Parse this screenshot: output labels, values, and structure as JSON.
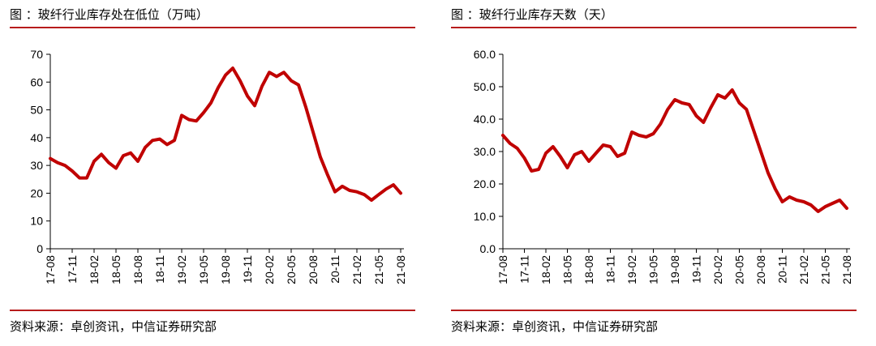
{
  "colors": {
    "line": "#c00000",
    "rule": "#b71c1c",
    "axis": "#000000"
  },
  "figures": [
    {
      "title": "图   ：玻纤行业库存处在低位（万吨）",
      "source": "资料来源：卓创资讯，中信证券研究部"
    },
    {
      "title": "图   ：玻纤行业库存天数（天）",
      "source": "资料来源：卓创资讯，中信证券研究部"
    }
  ],
  "chart_data": [
    {
      "type": "line",
      "title": "",
      "xlabel": "",
      "ylabel": "",
      "ylim": [
        0,
        70
      ],
      "yticks": [
        "0",
        "10",
        "20",
        "30",
        "40",
        "50",
        "60",
        "70"
      ],
      "grid": false,
      "legend": "none",
      "categories": [
        "17-08",
        "17-09",
        "17-10",
        "17-11",
        "17-12",
        "18-01",
        "18-02",
        "18-03",
        "18-04",
        "18-05",
        "18-06",
        "18-07",
        "18-08",
        "18-09",
        "18-10",
        "18-11",
        "18-12",
        "19-01",
        "19-02",
        "19-03",
        "19-04",
        "19-05",
        "19-06",
        "19-07",
        "19-08",
        "19-09",
        "19-10",
        "19-11",
        "19-12",
        "20-01",
        "20-02",
        "20-03",
        "20-04",
        "20-05",
        "20-06",
        "20-07",
        "20-08",
        "20-09",
        "20-10",
        "20-11",
        "20-12",
        "21-01",
        "21-02",
        "21-03",
        "21-04",
        "21-05",
        "21-06",
        "21-07",
        "21-08"
      ],
      "xtick_labels": [
        "17-08",
        "17-11",
        "18-02",
        "18-05",
        "18-08",
        "18-11",
        "19-02",
        "19-05",
        "19-08",
        "19-11",
        "20-02",
        "20-05",
        "20-08",
        "20-11",
        "21-02",
        "21-05",
        "21-08"
      ],
      "series": [
        {
          "values": [
            32.5,
            31,
            30,
            28,
            25.5,
            25.5,
            31.5,
            34,
            31,
            29,
            33.5,
            34.5,
            31.5,
            36.5,
            39,
            39.5,
            37.5,
            39,
            48,
            46.5,
            46,
            49,
            52.5,
            58,
            62.5,
            65,
            60.5,
            55,
            51.5,
            58.5,
            63.5,
            62,
            63.5,
            60.5,
            59,
            51,
            42,
            33,
            26.5,
            20.5,
            22.5,
            21,
            20.5,
            19.5,
            17.5,
            19.5,
            21.5,
            23,
            20
          ]
        }
      ]
    },
    {
      "type": "line",
      "title": "",
      "xlabel": "",
      "ylabel": "",
      "ylim": [
        0,
        60
      ],
      "yticks": [
        "0.0",
        "10.0",
        "20.0",
        "30.0",
        "40.0",
        "50.0",
        "60.0"
      ],
      "grid": false,
      "legend": "none",
      "categories": [
        "17-08",
        "17-09",
        "17-10",
        "17-11",
        "17-12",
        "18-01",
        "18-02",
        "18-03",
        "18-04",
        "18-05",
        "18-06",
        "18-07",
        "18-08",
        "18-09",
        "18-10",
        "18-11",
        "18-12",
        "19-01",
        "19-02",
        "19-03",
        "19-04",
        "19-05",
        "19-06",
        "19-07",
        "19-08",
        "19-09",
        "19-10",
        "19-11",
        "19-12",
        "20-01",
        "20-02",
        "20-03",
        "20-04",
        "20-05",
        "20-06",
        "20-07",
        "20-08",
        "20-09",
        "20-10",
        "20-11",
        "20-12",
        "21-01",
        "21-02",
        "21-03",
        "21-04",
        "21-05",
        "21-06",
        "21-07",
        "21-08"
      ],
      "xtick_labels": [
        "17-08",
        "17-11",
        "18-02",
        "18-05",
        "18-08",
        "18-11",
        "19-02",
        "19-05",
        "19-08",
        "19-11",
        "20-02",
        "20-05",
        "20-08",
        "20-11",
        "21-02",
        "21-05",
        "21-08"
      ],
      "series": [
        {
          "values": [
            35,
            32.5,
            31,
            28,
            24,
            24.5,
            29.5,
            31.5,
            28.5,
            25,
            29,
            30,
            27,
            29.5,
            32,
            31.5,
            28.5,
            29.5,
            36,
            35,
            34.5,
            35.5,
            38.5,
            43,
            46,
            45,
            44.5,
            41,
            39,
            43.5,
            47.5,
            46.5,
            49,
            45,
            43,
            36.5,
            30,
            23.5,
            18.5,
            14.5,
            16,
            15,
            14.5,
            13.5,
            11.5,
            13,
            14,
            15,
            12.5
          ]
        }
      ]
    }
  ]
}
